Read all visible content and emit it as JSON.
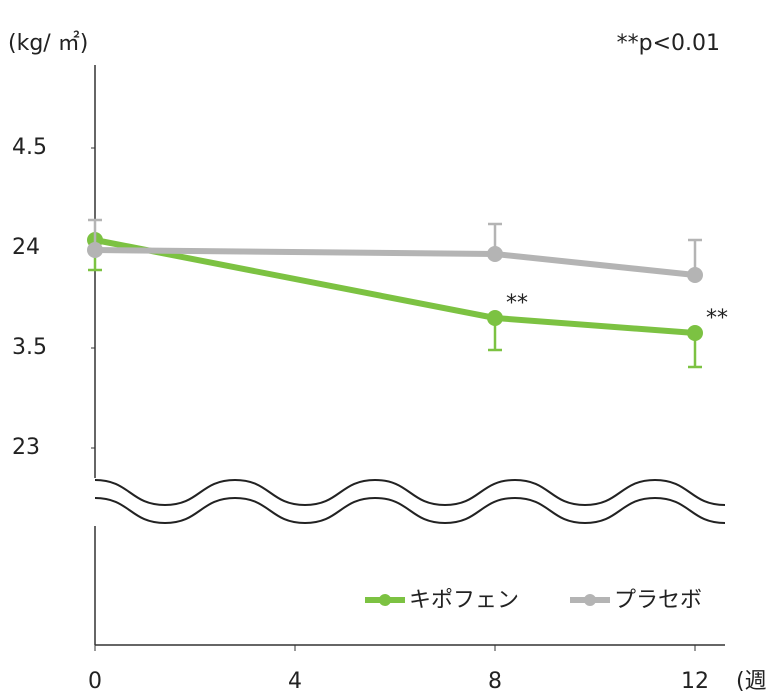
{
  "chart_data": {
    "type": "line",
    "y_label": "(kg/ ㎡)",
    "x_label": "(週",
    "annotation": "**p<0.01",
    "x": [
      0,
      8,
      12
    ],
    "xlim": [
      0,
      12.6
    ],
    "xticks": [
      0,
      4,
      8,
      12
    ],
    "ylim": [
      23,
      24.9
    ],
    "yticks": [
      23,
      {
        "value": 23.5,
        "label": "3.5"
      },
      24,
      {
        "value": 24.5,
        "label": "4.5"
      }
    ],
    "axis_break": true,
    "legend": "bottom-right",
    "series": [
      {
        "name": "キポフェン",
        "color": "#7cc242",
        "values": [
          24.04,
          23.65,
          23.575
        ],
        "errors": [
          0.15,
          0.16,
          0.17
        ],
        "error_direction": "down",
        "labels": [
          null,
          "**",
          "**"
        ]
      },
      {
        "name": "プラセボ",
        "color": "#b4b4b4",
        "values": [
          23.99,
          23.97,
          23.865
        ],
        "errors": [
          0.15,
          0.15,
          0.175
        ],
        "error_direction": "up",
        "labels": [
          null,
          null,
          null
        ]
      }
    ]
  }
}
